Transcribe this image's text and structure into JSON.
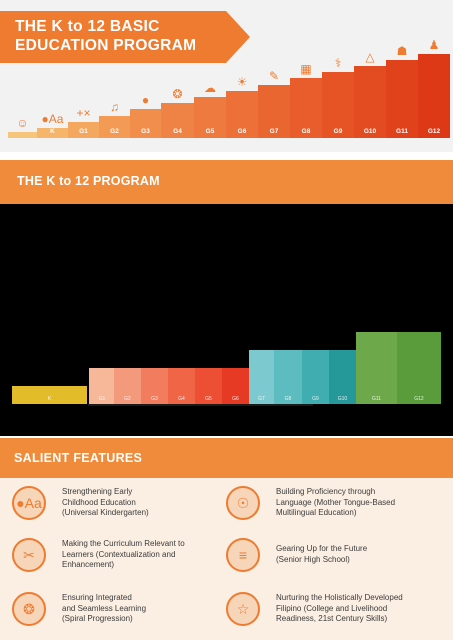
{
  "header": {
    "title_line1": "THE K to 12 BASIC",
    "title_line2": "EDUCATION PROGRAM",
    "accent": "#ee7b30",
    "stairs": [
      {
        "label": "",
        "icon": "person-icon",
        "glyph": "☺"
      },
      {
        "label": "K",
        "icon": "alphabet-icon",
        "glyph": "●Aa"
      },
      {
        "label": "G1",
        "icon": "math-symbols-icon",
        "glyph": "+×"
      },
      {
        "label": "G2",
        "icon": "music-note-icon",
        "glyph": "♫"
      },
      {
        "label": "G3",
        "icon": "ball-icon",
        "glyph": "●"
      },
      {
        "label": "G4",
        "icon": "art-palette-icon",
        "glyph": "❂"
      },
      {
        "label": "G5",
        "icon": "speech-bubble-icon",
        "glyph": "☁"
      },
      {
        "label": "G6",
        "icon": "sun-icon",
        "glyph": "☀"
      },
      {
        "label": "G7",
        "icon": "pencil-icon",
        "glyph": "✎"
      },
      {
        "label": "G8",
        "icon": "calculator-icon",
        "glyph": "▦"
      },
      {
        "label": "G9",
        "icon": "microscope-icon",
        "glyph": "⚕"
      },
      {
        "label": "G10",
        "icon": "compass-icon",
        "glyph": "△"
      },
      {
        "label": "G11",
        "icon": "diploma-icon",
        "glyph": "☗"
      },
      {
        "label": "G12",
        "icon": "graduate-icon",
        "glyph": "♟"
      }
    ]
  },
  "program": {
    "heading": "THE K to 12 PROGRAM",
    "chart_data": {
      "type": "bar",
      "categories": [
        "K",
        "G1",
        "G2",
        "G3",
        "G4",
        "G5",
        "G6",
        "G7",
        "G8",
        "G9",
        "G10",
        "G11",
        "G12"
      ],
      "series": [
        {
          "values": [
            1,
            2,
            2,
            2,
            2,
            2,
            2,
            3,
            3,
            3,
            3,
            4,
            4
          ]
        }
      ],
      "colors": [
        "#e2bd29",
        "#f7b89a",
        "#f49a7c",
        "#f27c5e",
        "#ef6546",
        "#ec4f34",
        "#e63a25",
        "#7ccacf",
        "#5cbcbf",
        "#40adb0",
        "#25999a",
        "#6da94a",
        "#5a9c3c"
      ]
    }
  },
  "salient": {
    "heading": "SALIENT FEATURES",
    "items": [
      {
        "icon": "alphabet-icon",
        "glyph": "●Aa",
        "lines": [
          "Strengthening Early",
          "Childhood Education",
          "(Universal Kindergarten)"
        ]
      },
      {
        "icon": "language-bubbles-icon",
        "glyph": "☉",
        "lines": [
          "Building Proficiency through",
          "Language (Mother Tongue-Based",
          "Multilingual Education)"
        ]
      },
      {
        "icon": "scissors-icon",
        "glyph": "✂",
        "lines": [
          "Making the Curriculum Relevant to",
          "Learners (Contextualization and",
          "Enhancement)"
        ]
      },
      {
        "icon": "books-icon",
        "glyph": "≡",
        "lines": [
          "Gearing Up for the Future",
          "(Senior High School)"
        ]
      },
      {
        "icon": "spiral-icon",
        "glyph": "❂",
        "lines": [
          "Ensuring Integrated",
          "and Seamless Learning",
          "(Spiral Progression)"
        ]
      },
      {
        "icon": "person-icon",
        "glyph": "☆",
        "lines": [
          "Nurturing the Holistically Developed",
          "Filipino (College and Livelihood",
          "Readiness, 21st Century Skills)"
        ]
      }
    ]
  }
}
